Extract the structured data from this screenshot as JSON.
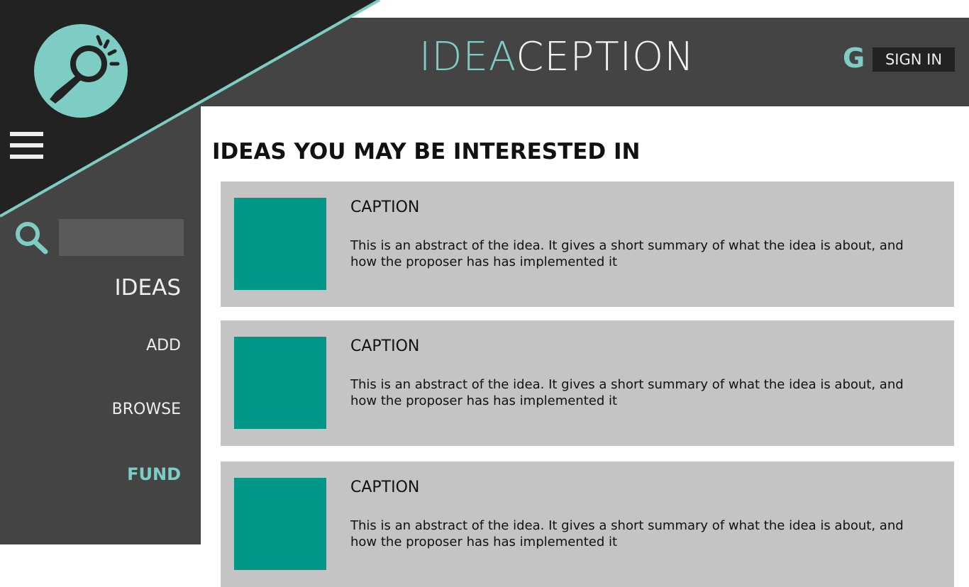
{
  "header": {
    "brand_part1": "IDEA",
    "brand_part2": "CEPTION",
    "google_icon": "G",
    "sign_in": "SIGN IN"
  },
  "sidebar": {
    "nav": [
      "IDEAS",
      "ADD",
      "BROWSE",
      "FUND"
    ]
  },
  "main": {
    "heading": "IDEAS YOU MAY BE INTERESTED IN",
    "cards": [
      {
        "caption": "CAPTION",
        "abstract": "This is an abstract of the idea. It gives a short summary of what the idea is about, and how the proposer has has implemented it"
      },
      {
        "caption": "CAPTION",
        "abstract": "This is an abstract of the idea. It gives a short summary of what the idea is about, and how the proposer has has implemented it"
      },
      {
        "caption": "CAPTION",
        "abstract": "This is an abstract of the idea. It gives a short summary of what the idea is about, and how the proposer has has implemented it"
      }
    ]
  }
}
